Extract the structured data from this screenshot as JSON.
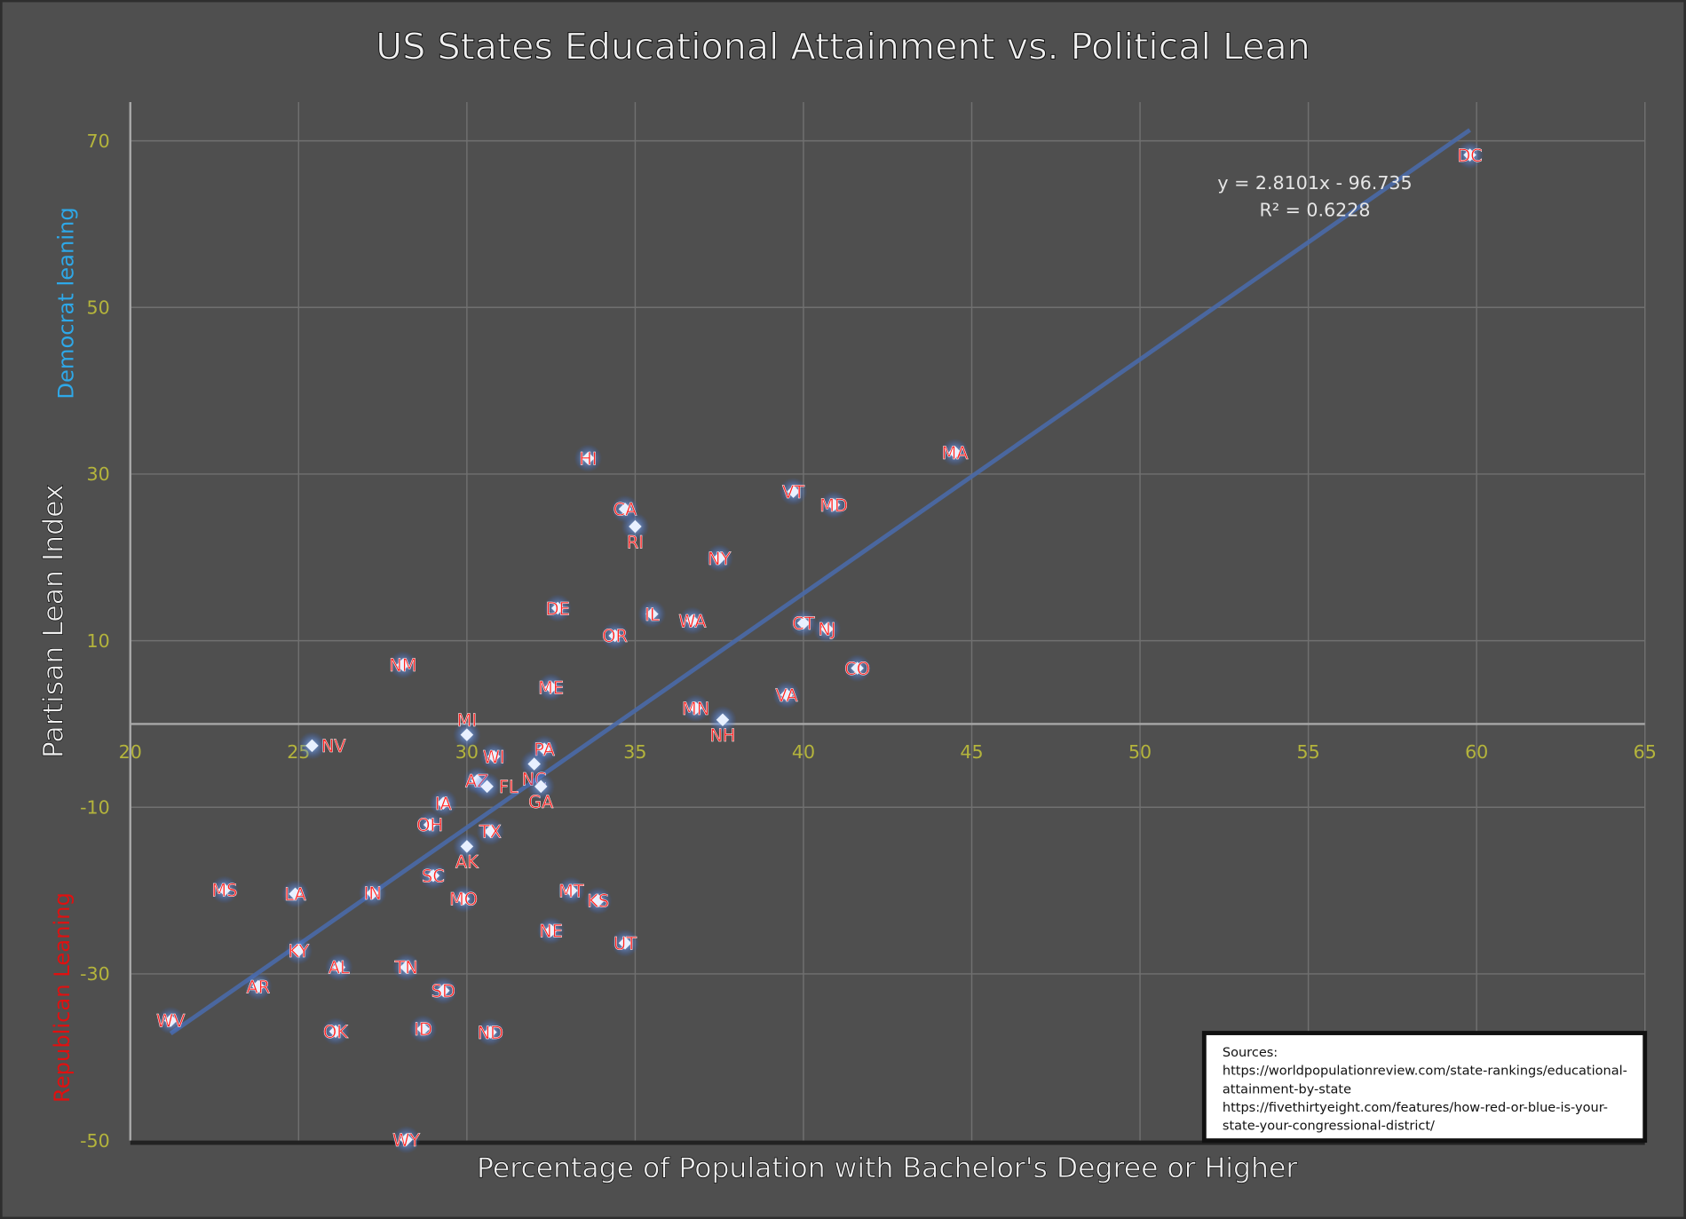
{
  "chart_data": {
    "type": "scatter",
    "title": "US States Educational Attainment vs. Political Lean",
    "xlabel": "Percentage of Population with Bachelor's Degree or Higher",
    "ylabel": "Partisan Lean Index",
    "ylabel_top": "Democrat leaning",
    "ylabel_bottom": "Republican Leaning",
    "xlim": [
      20,
      65
    ],
    "ylim": [
      -50,
      70
    ],
    "xticks": [
      20,
      25,
      30,
      35,
      40,
      45,
      50,
      55,
      60,
      65
    ],
    "yticks": [
      -50,
      -30,
      -10,
      10,
      30,
      50,
      70
    ],
    "grid": true,
    "trendline": {
      "slope": 2.8101,
      "intercept": -96.735,
      "equation": "y = 2.8101x - 96.735",
      "r2": "R² = 0.6228"
    },
    "points": [
      {
        "label": "DC",
        "x": 59.8,
        "y": 68.3
      },
      {
        "label": "MA",
        "x": 44.5,
        "y": 32.6
      },
      {
        "label": "HI",
        "x": 33.6,
        "y": 31.9
      },
      {
        "label": "VT",
        "x": 39.7,
        "y": 27.9
      },
      {
        "label": "MD",
        "x": 40.9,
        "y": 26.3
      },
      {
        "label": "CA",
        "x": 34.7,
        "y": 25.8
      },
      {
        "label": "RI",
        "x": 35.0,
        "y": 23.7
      },
      {
        "label": "NY",
        "x": 37.5,
        "y": 19.9
      },
      {
        "label": "DE",
        "x": 32.7,
        "y": 13.9
      },
      {
        "label": "IL",
        "x": 35.5,
        "y": 13.2
      },
      {
        "label": "WA",
        "x": 36.7,
        "y": 12.4
      },
      {
        "label": "CT",
        "x": 40.0,
        "y": 12.1
      },
      {
        "label": "NJ",
        "x": 40.7,
        "y": 11.4
      },
      {
        "label": "OR",
        "x": 34.4,
        "y": 10.6
      },
      {
        "label": "CO",
        "x": 41.6,
        "y": 6.7
      },
      {
        "label": "NM",
        "x": 28.1,
        "y": 7.1
      },
      {
        "label": "ME",
        "x": 32.5,
        "y": 4.4
      },
      {
        "label": "VA",
        "x": 39.5,
        "y": 3.5
      },
      {
        "label": "MN",
        "x": 36.8,
        "y": 1.9
      },
      {
        "label": "NH",
        "x": 37.6,
        "y": 0.5
      },
      {
        "label": "MI",
        "x": 30.0,
        "y": -1.3
      },
      {
        "label": "NV",
        "x": 25.4,
        "y": -2.6
      },
      {
        "label": "WI",
        "x": 30.8,
        "y": -3.9
      },
      {
        "label": "PA",
        "x": 32.3,
        "y": -3.0
      },
      {
        "label": "NC",
        "x": 32.0,
        "y": -4.8
      },
      {
        "label": "AZ",
        "x": 30.3,
        "y": -6.8
      },
      {
        "label": "FL",
        "x": 30.6,
        "y": -7.5
      },
      {
        "label": "GA",
        "x": 32.2,
        "y": -7.5
      },
      {
        "label": "IA",
        "x": 29.3,
        "y": -9.5
      },
      {
        "label": "OH",
        "x": 28.9,
        "y": -12.1
      },
      {
        "label": "TX",
        "x": 30.7,
        "y": -12.9
      },
      {
        "label": "AK",
        "x": 30.0,
        "y": -14.7
      },
      {
        "label": "SC",
        "x": 29.0,
        "y": -18.2
      },
      {
        "label": "MS",
        "x": 22.8,
        "y": -19.9
      },
      {
        "label": "LA",
        "x": 24.9,
        "y": -20.4
      },
      {
        "label": "IN",
        "x": 27.2,
        "y": -20.3
      },
      {
        "label": "MO",
        "x": 29.9,
        "y": -21.0
      },
      {
        "label": "MT",
        "x": 33.1,
        "y": -20.0
      },
      {
        "label": "KS",
        "x": 33.9,
        "y": -21.2
      },
      {
        "label": "NE",
        "x": 32.5,
        "y": -24.8
      },
      {
        "label": "UT",
        "x": 34.7,
        "y": -26.3
      },
      {
        "label": "KY",
        "x": 25.0,
        "y": -27.2
      },
      {
        "label": "AL",
        "x": 26.2,
        "y": -29.2
      },
      {
        "label": "TN",
        "x": 28.2,
        "y": -29.2
      },
      {
        "label": "AR",
        "x": 23.8,
        "y": -31.5
      },
      {
        "label": "SD",
        "x": 29.3,
        "y": -32.0
      },
      {
        "label": "WV",
        "x": 21.2,
        "y": -35.6
      },
      {
        "label": "OK",
        "x": 26.1,
        "y": -36.9
      },
      {
        "label": "ID",
        "x": 28.7,
        "y": -36.6
      },
      {
        "label": "ND",
        "x": 30.7,
        "y": -37.0
      },
      {
        "label": "WY",
        "x": 28.2,
        "y": -49.9
      }
    ],
    "colors": {
      "background": "#4f4f4f",
      "tick": "#b4b43c",
      "marker_label": "#ff2020",
      "trend": "#4a6aa8",
      "democrat": "#2ea8e8",
      "republican": "#e01010"
    }
  },
  "sources": {
    "heading": "Sources:",
    "lines": [
      "https://worldpopulationreview.com/state-rankings/educational-",
      "attainment-by-state",
      "https://fivethirtyeight.com/features/how-red-or-blue-is-your-",
      "state-your-congressional-district/"
    ]
  }
}
